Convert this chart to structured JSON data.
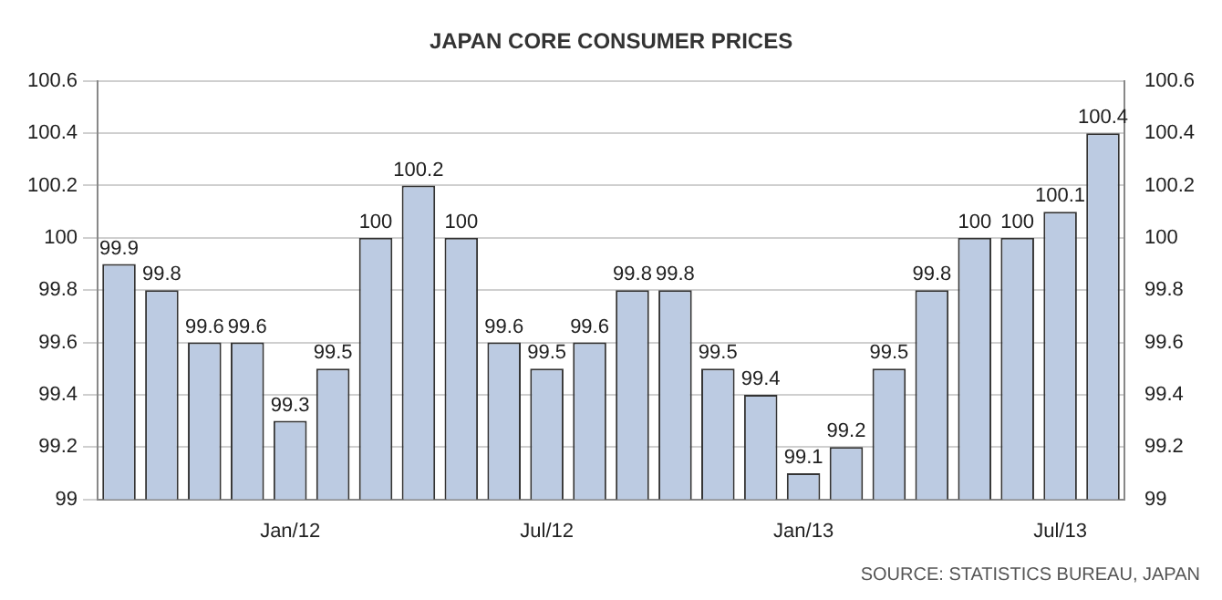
{
  "chart_data": {
    "type": "bar",
    "title": "JAPAN CORE CONSUMER PRICES",
    "categories": [
      null,
      null,
      null,
      null,
      "Jan/12",
      null,
      null,
      null,
      null,
      null,
      "Jul/12",
      null,
      null,
      null,
      null,
      null,
      "Jan/13",
      null,
      null,
      null,
      null,
      null,
      "Jul/13",
      null
    ],
    "values": [
      99.9,
      99.8,
      99.6,
      99.6,
      99.3,
      99.5,
      100,
      100.2,
      100,
      99.6,
      99.5,
      99.6,
      99.8,
      99.8,
      99.5,
      99.4,
      99.1,
      99.2,
      99.5,
      99.8,
      100,
      100,
      100.1,
      100.4
    ],
    "color": "#bccbe2",
    "ylim": [
      99,
      100.6
    ],
    "yticks": [
      99,
      99.2,
      99.4,
      99.6,
      99.8,
      100,
      100.2,
      100.4,
      100.6
    ],
    "y2lim": [
      99,
      100.6
    ],
    "y2ticks": [
      99,
      99.2,
      99.4,
      99.6,
      99.8,
      100,
      100.2,
      100.4,
      100.6
    ],
    "grid": "y",
    "data_labels": true,
    "annotations": [
      "SOURCE: STATISTICS BUREAU, JAPAN"
    ]
  }
}
